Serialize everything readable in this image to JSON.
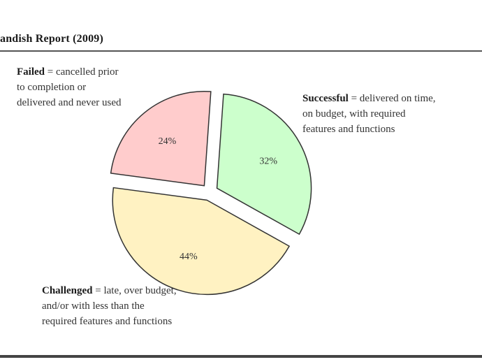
{
  "title": "andish Report (2009)",
  "annotations": {
    "failed": {
      "term": "Failed",
      "lines": [
        "= cancelled prior",
        "to completion or",
        "delivered and never used"
      ]
    },
    "successful": {
      "term": "Successful",
      "lines": [
        "= delivered on time,",
        "on budget, with required",
        "features and functions"
      ]
    },
    "challenged": {
      "term": "Challenged",
      "lines": [
        "= late, over budget,",
        "and/or with less than the",
        "required features and functions"
      ]
    }
  },
  "chart_data": {
    "type": "pie",
    "slices": [
      {
        "label": "Successful",
        "value": 32,
        "display": "32%",
        "color": "#ccffcc"
      },
      {
        "label": "Challenged",
        "value": 44,
        "display": "44%",
        "color": "#fff2c2"
      },
      {
        "label": "Failed",
        "value": 24,
        "display": "24%",
        "color": "#ffcccc"
      }
    ],
    "exploded": true,
    "legend": "none"
  }
}
